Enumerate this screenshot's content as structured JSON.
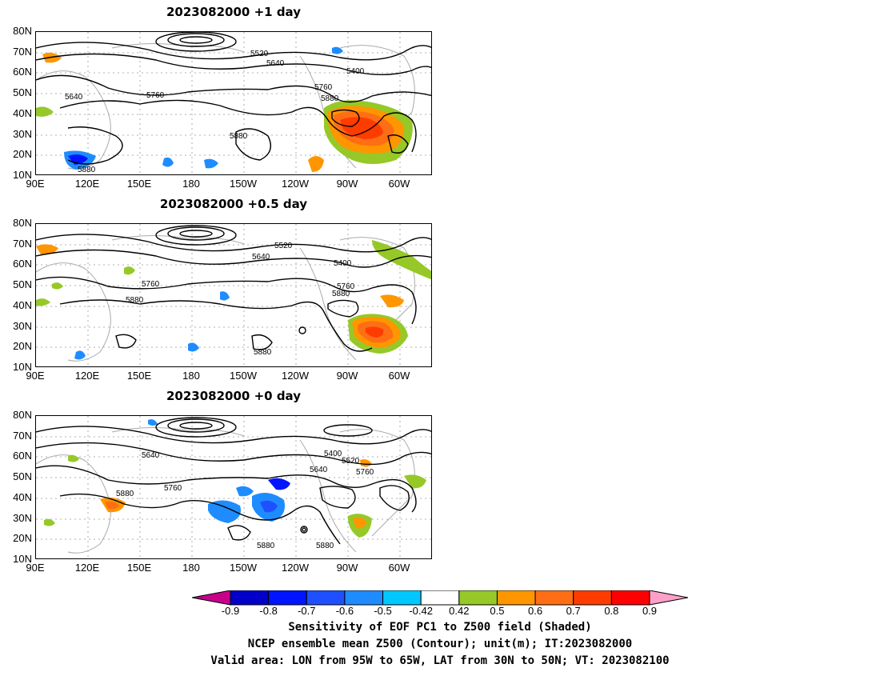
{
  "panels": [
    {
      "title": "2023082000 +1 day",
      "contour_labels": [
        "5520",
        "5640",
        "5400",
        "5640",
        "5760",
        "5760",
        "5880",
        "5880",
        "5880"
      ]
    },
    {
      "title": "2023082000 +0.5 day",
      "contour_labels": [
        "5520",
        "5640",
        "5400",
        "5760",
        "5760",
        "5880",
        "5880",
        "5880"
      ]
    },
    {
      "title": "2023082000 +0 day",
      "contour_labels": [
        "5640",
        "5400",
        "5520",
        "5640",
        "5760",
        "5760",
        "5880",
        "5880",
        "5880"
      ]
    }
  ],
  "axes": {
    "lat_ticks": [
      "80N",
      "70N",
      "60N",
      "50N",
      "40N",
      "30N",
      "20N",
      "10N"
    ],
    "lon_ticks": [
      "90E",
      "120E",
      "150E",
      "180",
      "150W",
      "120W",
      "90W",
      "60W"
    ]
  },
  "colorbar": {
    "ticks": [
      "-0.9",
      "-0.8",
      "-0.7",
      "-0.6",
      "-0.5",
      "-0.42",
      "0.42",
      "0.5",
      "0.6",
      "0.7",
      "0.8",
      "0.9"
    ],
    "colors": [
      "#c8008c",
      "#0000c8",
      "#0014ff",
      "#1e50ff",
      "#1e8cff",
      "#00c8ff",
      "#ffffff",
      "#96c828",
      "#ff9600",
      "#ff6e14",
      "#ff3c00",
      "#ff0000",
      "#ffa0c8"
    ]
  },
  "caption": {
    "line1": "Sensitivity of EOF PC1 to Z500 field (Shaded)",
    "line2": "NCEP ensemble mean Z500 (Contour); unit(m); IT:2023082000",
    "line3": "Valid area: LON from 95W to 65W, LAT from 30N to 50N; VT: 2023082100"
  }
}
